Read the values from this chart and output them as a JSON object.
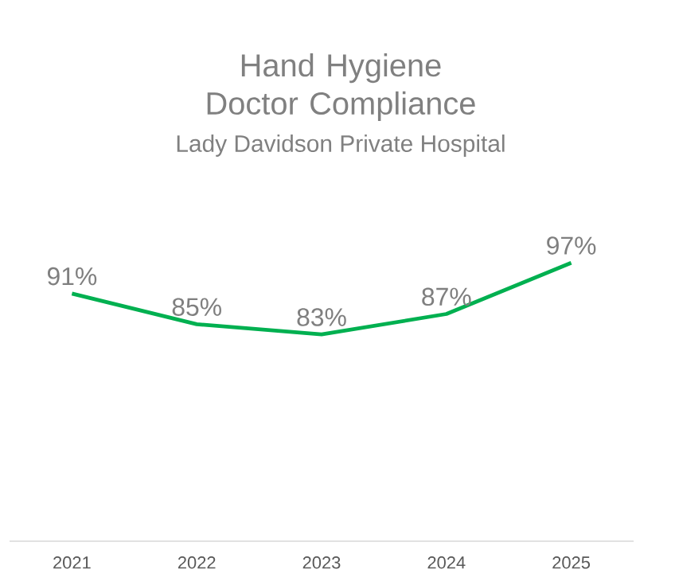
{
  "chart_data": {
    "type": "line",
    "title": "Hand Hygiene Doctor Compliance",
    "subtitle": "Lady Davidson Private Hospital",
    "categories": [
      "2021",
      "2022",
      "2023",
      "2024",
      "2025"
    ],
    "series": [
      {
        "color": "#00b050",
        "values": [
          91,
          85,
          83,
          87,
          97
        ],
        "value_labels": [
          "91%",
          "85%",
          "83%",
          "87%",
          "97%"
        ]
      }
    ],
    "marker": "none"
  }
}
